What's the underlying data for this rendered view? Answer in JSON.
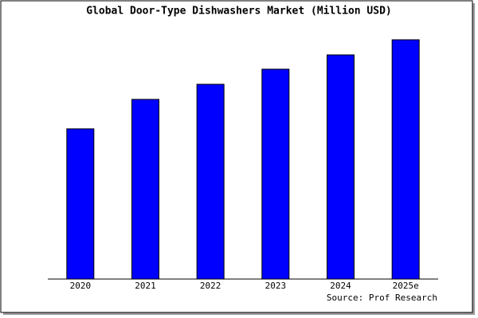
{
  "chart_data": {
    "type": "bar",
    "title": "Global Door-Type Dishwashers Market (Million USD)",
    "categories": [
      "2020",
      "2021",
      "2022",
      "2023",
      "2024",
      "2025e"
    ],
    "values": [
      189,
      226,
      245,
      264,
      282,
      301
    ],
    "color": "#0000ff",
    "ylim": [
      0,
      301
    ],
    "source": "Source: Prof Research"
  }
}
